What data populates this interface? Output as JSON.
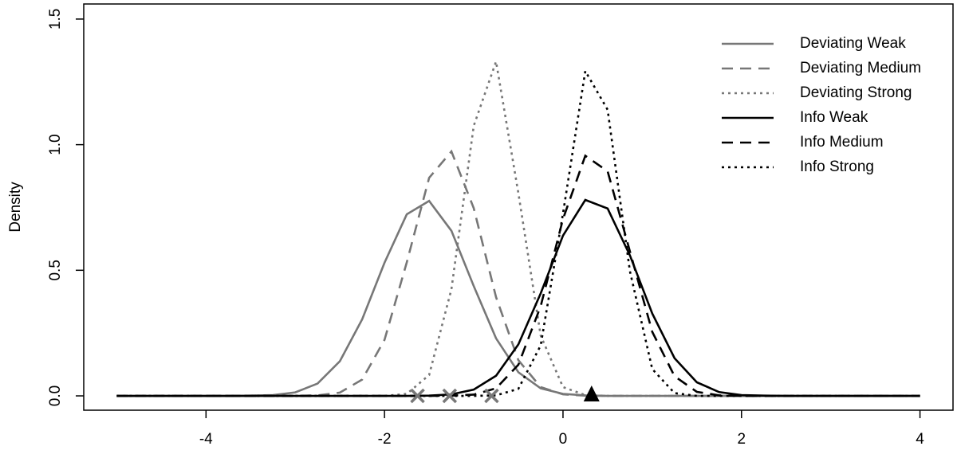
{
  "chart_data": {
    "type": "line",
    "y_label": "Density",
    "x": [
      -5,
      -4.75,
      -4.5,
      -4.25,
      -4,
      -3.75,
      -3.5,
      -3.25,
      -3,
      -2.75,
      -2.5,
      -2.25,
      -2,
      -1.75,
      -1.5,
      -1.25,
      -1,
      -0.75,
      -0.5,
      -0.25,
      0,
      0.25,
      0.5,
      0.75,
      1,
      1.25,
      1.5,
      1.75,
      2,
      2.25,
      2.5,
      2.75,
      3,
      3.25,
      3.5,
      3.75,
      4
    ],
    "series": [
      {
        "name": "Deviating Weak",
        "color": "#777777",
        "dash": "solid",
        "values": [
          0,
          0,
          0,
          0,
          0,
          0,
          0.001,
          0.003,
          0.014,
          0.049,
          0.138,
          0.305,
          0.53,
          0.723,
          0.776,
          0.657,
          0.437,
          0.229,
          0.094,
          0.03,
          0.008,
          0.002,
          0,
          0,
          0,
          0,
          0,
          0,
          0,
          0,
          0,
          0,
          0,
          0,
          0,
          0,
          0
        ]
      },
      {
        "name": "Deviating Medium",
        "color": "#777777",
        "dash": "dashed",
        "values": [
          0,
          0,
          0,
          0,
          0,
          0,
          0,
          0,
          0,
          0.002,
          0.013,
          0.065,
          0.223,
          0.532,
          0.868,
          0.973,
          0.747,
          0.393,
          0.142,
          0.035,
          0.006,
          0.001,
          0,
          0,
          0,
          0,
          0,
          0,
          0,
          0,
          0,
          0,
          0,
          0,
          0,
          0,
          0
        ]
      },
      {
        "name": "Deviating Strong",
        "color": "#777777",
        "dash": "dotted",
        "values": [
          0,
          0,
          0,
          0,
          0,
          0,
          0,
          0,
          0,
          0,
          0,
          0,
          0,
          0.008,
          0.083,
          0.425,
          1.075,
          1.331,
          0.807,
          0.24,
          0.035,
          0.003,
          0,
          0,
          0,
          0,
          0,
          0,
          0,
          0,
          0,
          0,
          0,
          0,
          0,
          0,
          0
        ]
      },
      {
        "name": "Info Weak",
        "color": "#000000",
        "dash": "solid",
        "values": [
          0,
          0,
          0,
          0,
          0,
          0,
          0,
          0,
          0,
          0,
          0,
          0,
          0,
          0,
          0.001,
          0.006,
          0.025,
          0.08,
          0.205,
          0.408,
          0.638,
          0.78,
          0.746,
          0.559,
          0.328,
          0.15,
          0.054,
          0.015,
          0.003,
          0.001,
          0,
          0,
          0,
          0,
          0,
          0,
          0
        ]
      },
      {
        "name": "Info Medium",
        "color": "#000000",
        "dash": "dashed",
        "values": [
          0,
          0,
          0,
          0,
          0,
          0,
          0,
          0,
          0,
          0,
          0,
          0,
          0,
          0,
          0,
          0.001,
          0.005,
          0.03,
          0.124,
          0.357,
          0.704,
          0.956,
          0.894,
          0.575,
          0.255,
          0.078,
          0.016,
          0.002,
          0,
          0,
          0,
          0,
          0,
          0,
          0,
          0,
          0
        ]
      },
      {
        "name": "Info Strong",
        "color": "#000000",
        "dash": "dotted",
        "values": [
          0,
          0,
          0,
          0,
          0,
          0,
          0,
          0,
          0,
          0,
          0,
          0,
          0,
          0,
          0,
          0,
          0,
          0.002,
          0.028,
          0.201,
          0.726,
          1.293,
          1.139,
          0.496,
          0.107,
          0.011,
          0,
          0,
          0,
          0,
          0,
          0,
          0,
          0,
          0,
          0,
          0
        ]
      }
    ],
    "markers": [
      {
        "shape": "x",
        "color": "#777777",
        "x": [
          -1.63,
          -1.27,
          -0.8
        ],
        "y": [
          0,
          0,
          0
        ]
      },
      {
        "shape": "triangle",
        "color": "#000000",
        "x": [
          0.32
        ],
        "y": [
          0
        ]
      }
    ],
    "xlim": [
      -5.37,
      4.37
    ],
    "ylim": [
      -0.057,
      1.56
    ],
    "xticks": [
      -4,
      -2,
      0,
      2,
      4
    ],
    "yticks": [
      {
        "value": 0,
        "label": "0.0"
      },
      {
        "value": 0.5,
        "label": "0.5"
      },
      {
        "value": 1,
        "label": "1.0"
      },
      {
        "value": 1.5,
        "label": "1.5"
      }
    ],
    "legend": "top-right"
  }
}
